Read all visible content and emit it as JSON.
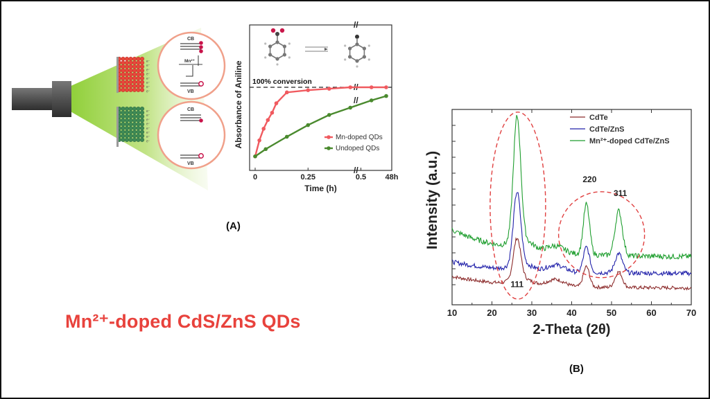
{
  "title": "Mn²⁺-doped CdS/ZnS  QDs",
  "panel_a_label": "(A)",
  "panel_b_label": "(B)",
  "diagram": {
    "cb_label": "CB",
    "vb_label": "VB",
    "mn_label": "Mn²⁺"
  },
  "colors": {
    "title": "#e8423c",
    "mn_doped": "#f05a5f",
    "undoped": "#4a8a2e",
    "cdte": "#8b2a2a",
    "cdte_zns": "#2222aa",
    "mn_cdte_zns": "#1e9e2e",
    "red_dots": "#e8463a",
    "green_dots": "#3e8a55",
    "light_beam": "#a6d64a"
  },
  "chart_data": [
    {
      "type": "line",
      "title": "",
      "annotation": "100% conversion",
      "xlabel": "Time (h)",
      "ylabel": "Absorbance of Aniline",
      "x_ticks": [
        "0",
        "0.25",
        "0.5",
        "48h"
      ],
      "legend": [
        "Mn-doped QDs",
        "Undoped QDs"
      ],
      "legend_position": "lower-right",
      "series": [
        {
          "name": "Mn-doped QDs",
          "x": [
            0,
            0.02,
            0.04,
            0.06,
            0.08,
            0.1,
            0.15,
            0.25,
            0.35,
            0.45,
            0.55,
            0.75
          ],
          "y": [
            0.05,
            0.27,
            0.43,
            0.55,
            0.65,
            0.78,
            0.93,
            0.96,
            0.98,
            1.0,
            1.0,
            1.0
          ]
        },
        {
          "name": "Undoped QDs",
          "x": [
            0,
            0.05,
            0.15,
            0.25,
            0.35,
            0.45,
            0.55,
            0.75
          ],
          "y": [
            0.05,
            0.15,
            0.32,
            0.48,
            0.62,
            0.72,
            0.82,
            0.88
          ]
        }
      ]
    },
    {
      "type": "line",
      "xlabel": "2-Theta (2θ)",
      "ylabel": "Intensity (a.u.)",
      "xlim": [
        10,
        70
      ],
      "x_ticks": [
        10,
        20,
        30,
        40,
        50,
        60,
        70
      ],
      "legend": [
        "CdTe",
        "CdTe/ZnS",
        "Mn²⁺-doped CdTe/ZnS"
      ],
      "legend_position": "upper-right",
      "peak_labels": [
        "111",
        "220",
        "311"
      ],
      "peaks_2theta": [
        26.3,
        43.7,
        51.8
      ],
      "series": [
        {
          "name": "CdTe",
          "offset": 0.0,
          "intensity": [
            0.6,
            0.5,
            0.35,
            2.1,
            0.55,
            0.5,
            0.25,
            1.05,
            0.45,
            0.8,
            0.3,
            0.2,
            0.15
          ]
        },
        {
          "name": "CdTe/ZnS",
          "offset": 0.75,
          "intensity": [
            0.6,
            0.5,
            0.35,
            3.7,
            0.6,
            0.55,
            0.3,
            1.3,
            0.5,
            1.0,
            0.35,
            0.25,
            0.2
          ]
        },
        {
          "name": "Mn²⁺-doped CdTe/ZnS",
          "offset": 1.6,
          "intensity": [
            1.4,
            1.1,
            0.85,
            6.3,
            0.95,
            0.75,
            0.35,
            2.6,
            1.05,
            2.3,
            0.45,
            0.25,
            0.2
          ]
        }
      ]
    }
  ]
}
